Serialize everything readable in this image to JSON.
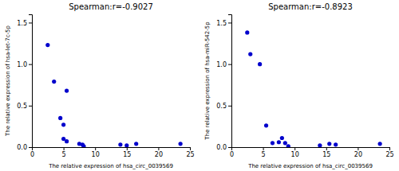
{
  "chart_data": [
    {
      "type": "scatter",
      "title": "Spearman:r=-0.9027",
      "xlabel": "The relative expression of hsa_circ_0039569",
      "ylabel": "The relative expression of hsa-let-7c-5p",
      "x": [
        2.5,
        3.5,
        4.5,
        5.0,
        5.0,
        5.5,
        5.5,
        7.5,
        8.0,
        8.2,
        14.0,
        15.0,
        16.5,
        23.5
      ],
      "values": [
        1.23,
        0.79,
        0.35,
        0.27,
        0.1,
        0.68,
        0.07,
        0.04,
        0.03,
        0.01,
        0.03,
        0.02,
        0.04,
        0.04
      ],
      "color": "#0000CC",
      "xlim": [
        0,
        25
      ],
      "ylim": [
        0,
        1.6
      ],
      "xticks": [
        0,
        5,
        10,
        15,
        20,
        25
      ],
      "yticks": [
        {
          "value": 0,
          "label": "0.0"
        },
        0.5,
        {
          "value": 1,
          "label": "1.0"
        },
        1.5
      ],
      "grid": false
    },
    {
      "type": "scatter",
      "title": "Spearman:r=-0.8923",
      "xlabel": "The relative expression of hsa_circ_0039569",
      "ylabel": "The relative expression of hsa-miR-542-5p",
      "x": [
        2.5,
        3.0,
        4.5,
        5.5,
        6.5,
        7.5,
        8.0,
        8.5,
        9.0,
        14.0,
        15.5,
        16.5,
        23.5
      ],
      "values": [
        1.38,
        1.12,
        1.0,
        0.26,
        0.05,
        0.06,
        0.11,
        0.05,
        0.01,
        0.02,
        0.04,
        0.03,
        0.04
      ],
      "color": "#0000CC",
      "xlim": [
        0,
        25
      ],
      "ylim": [
        0,
        1.6
      ],
      "xticks": [
        0,
        5,
        10,
        15,
        20,
        25
      ],
      "yticks": [
        {
          "value": 0,
          "label": "0.0"
        },
        0.5,
        {
          "value": 1,
          "label": "1.0"
        },
        1.5
      ],
      "grid": false
    }
  ]
}
